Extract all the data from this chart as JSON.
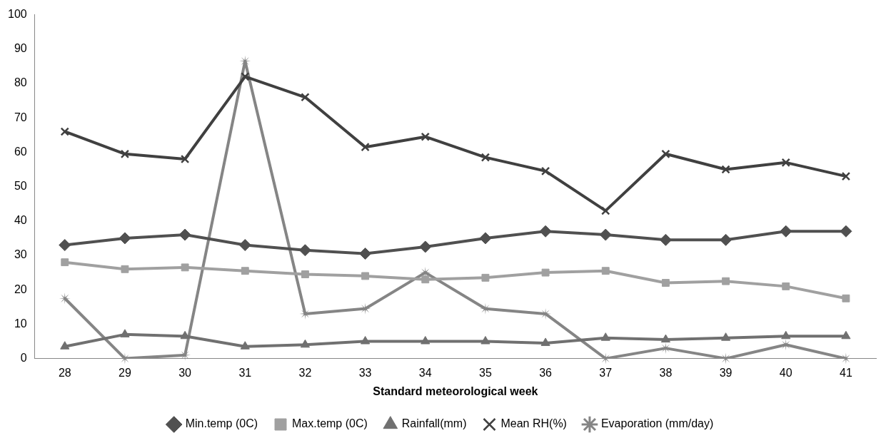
{
  "chart_data": {
    "type": "line",
    "xlabel": "Standard meteorological week",
    "categories": [
      "28",
      "29",
      "30",
      "31",
      "32",
      "33",
      "34",
      "35",
      "36",
      "37",
      "38",
      "39",
      "40",
      "41"
    ],
    "ylim": [
      0,
      100
    ],
    "yticks": [
      0,
      10,
      20,
      30,
      40,
      50,
      60,
      70,
      80,
      90,
      100
    ],
    "grid": false,
    "legend": "bottom",
    "line_style": "solid",
    "series": [
      {
        "name": "Min.temp (0C)",
        "color": "#505050",
        "marker": "diamond",
        "values": [
          33,
          35,
          36,
          33,
          31.5,
          30.5,
          32.5,
          35,
          37,
          36,
          34.5,
          34.5,
          37,
          37
        ]
      },
      {
        "name": "Max.temp (0C)",
        "color": "#a0a0a0",
        "marker": "square",
        "values": [
          28,
          26,
          26.5,
          25.5,
          24.5,
          24,
          23,
          23.5,
          25,
          25.5,
          22,
          22.5,
          21,
          17.5
        ]
      },
      {
        "name": "Rainfall(mm)",
        "color": "#707070",
        "marker": "triangle",
        "values": [
          3.5,
          7,
          6.5,
          3.5,
          4,
          5,
          5,
          5,
          4.5,
          6,
          5.5,
          6,
          6.5,
          6.5
        ]
      },
      {
        "name": "Mean RH(%)",
        "color": "#404040",
        "marker": "cross",
        "values": [
          66,
          59.5,
          58,
          82,
          76,
          61.5,
          64.5,
          58.5,
          54.5,
          43,
          59.5,
          55,
          57,
          53
        ]
      },
      {
        "name": "Evaporation (mm/day)",
        "color": "#858585",
        "marker": "star",
        "values": [
          17.5,
          0,
          1,
          86.5,
          13,
          14.5,
          25,
          14.5,
          13,
          0,
          3,
          0,
          4,
          0
        ]
      }
    ]
  }
}
